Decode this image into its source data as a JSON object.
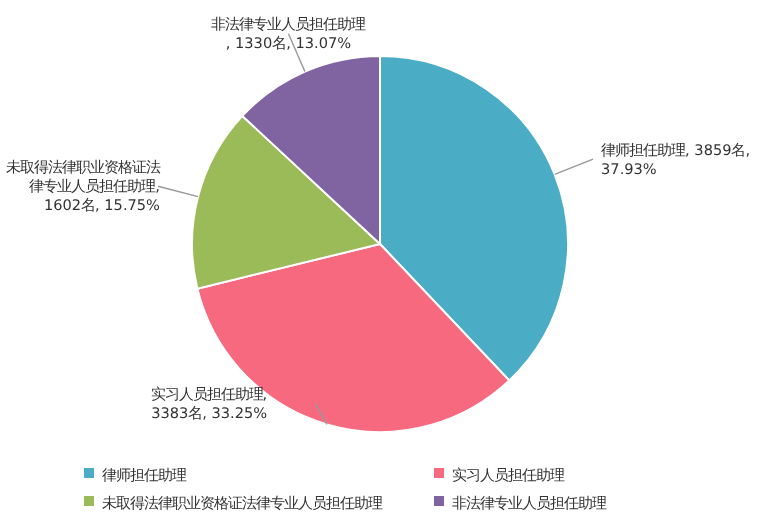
{
  "chart_data": {
    "type": "pie",
    "categories": [
      "律师担任助理",
      "实习人员担任助理",
      "未取得法律职业资格证法律专业人员担任助理",
      "非法律专业人员担任助理"
    ],
    "values": [
      3859,
      3383,
      1602,
      1330
    ],
    "value_labels": [
      "律师担任助理, 3859名, 37.93%",
      "实习人员担任助理, 3383名, 33.25%",
      "未取得法律职业资格证法律专业人员担任助理, 1602名, 15.75%",
      "非法律专业人员担任助理, 1330名, 13.07%"
    ],
    "colors": [
      "#4bacc6",
      "#f7697f",
      "#9bbb59",
      "#8064a2"
    ],
    "legend": "bottom"
  }
}
